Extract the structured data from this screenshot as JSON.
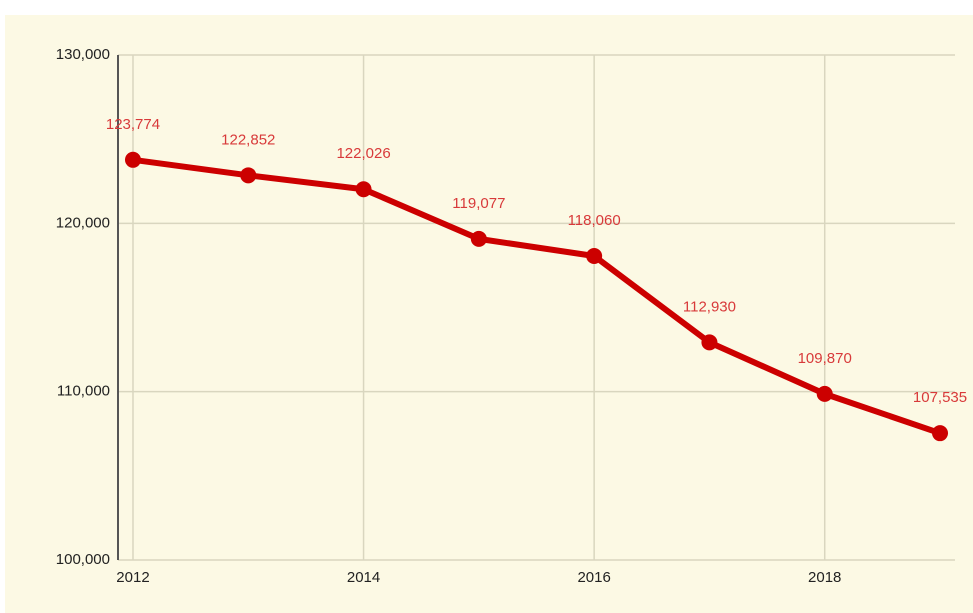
{
  "chart_data": {
    "type": "line",
    "x": [
      2012,
      2013,
      2014,
      2015,
      2016,
      2017,
      2018,
      2019
    ],
    "series": [
      {
        "color": "#cc0000",
        "values": [
          123774,
          122852,
          122026,
          119077,
          118060,
          112930,
          109870,
          107535
        ],
        "value_labels": [
          "123,774",
          "122,852",
          "122,026",
          "119,077",
          "118,060",
          "112,930",
          "109,870",
          "107,535"
        ]
      }
    ],
    "xlim": [
      2011.87,
      2019.13
    ],
    "xticks": [
      2012,
      2014,
      2016,
      2018
    ],
    "ylim": [
      100000,
      130000
    ],
    "yticks": [
      {
        "value": 100000,
        "label": "100,000"
      },
      {
        "value": 110000,
        "label": "110,000"
      },
      {
        "value": 120000,
        "label": "120,000"
      },
      {
        "value": 130000,
        "label": "130,000"
      }
    ],
    "grid": true
  }
}
